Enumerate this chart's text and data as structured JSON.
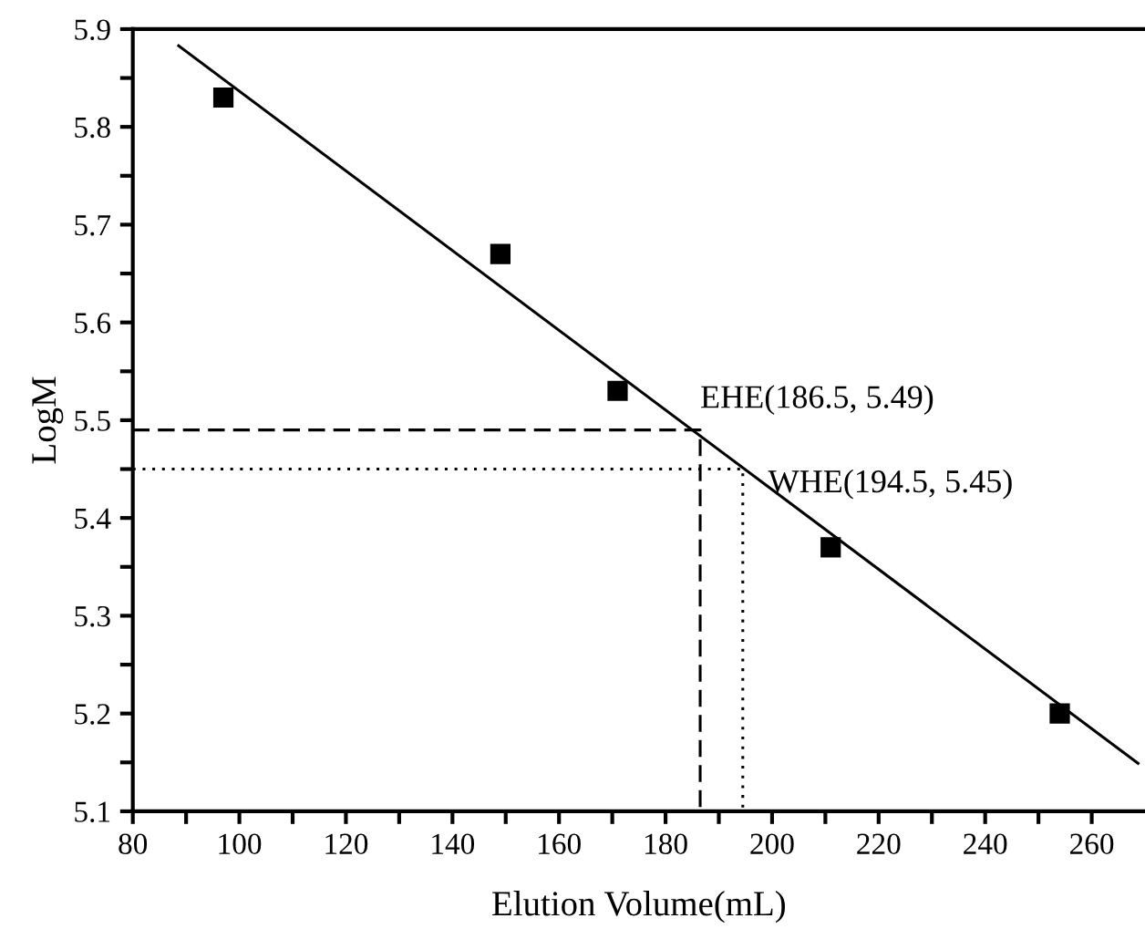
{
  "chart_data": {
    "type": "scatter",
    "xlabel": "Elution Volume(mL)",
    "ylabel": "LogM",
    "xlim": [
      80,
      270
    ],
    "ylim": [
      5.1,
      5.9
    ],
    "xticks": [
      80,
      {
        "value": 90,
        "label": null
      },
      100,
      {
        "value": 110,
        "label": null
      },
      120,
      {
        "value": 130,
        "label": null
      },
      140,
      {
        "value": 150,
        "label": null
      },
      160,
      {
        "value": 170,
        "label": null
      },
      180,
      {
        "value": 190,
        "label": null
      },
      200,
      {
        "value": 210,
        "label": null
      },
      220,
      {
        "value": 230,
        "label": null
      },
      240,
      {
        "value": 250,
        "label": null
      },
      260
    ],
    "yticks": [
      5.1,
      {
        "value": 5.15,
        "label": null
      },
      5.2,
      {
        "value": 5.25,
        "label": null
      },
      5.3,
      {
        "value": 5.35,
        "label": null
      },
      5.4,
      {
        "value": 5.45,
        "label": null
      },
      5.5,
      {
        "value": 5.55,
        "label": null
      },
      5.6,
      {
        "value": 5.65,
        "label": null
      },
      5.7,
      {
        "value": 5.75,
        "label": null
      },
      5.8,
      {
        "value": 5.85,
        "label": null
      },
      5.9
    ],
    "grid": false,
    "legend": false,
    "series": [
      {
        "marker": "square",
        "color": "#000000",
        "x": [
          97,
          149,
          171,
          211,
          254
        ],
        "values": [
          5.83,
          5.67,
          5.53,
          5.37,
          5.2
        ]
      },
      {
        "type": "line",
        "marker": "none",
        "line_style": "solid",
        "color": "#000000",
        "x": [
          88.6,
          268.7
        ],
        "values": [
          5.883,
          5.149
        ]
      },
      {
        "type": "line",
        "marker": "none",
        "line_style": "dashed",
        "color": "#000000",
        "x": [
          80,
          186.5,
          186.5
        ],
        "values": [
          5.49,
          5.49,
          5.1
        ]
      },
      {
        "type": "line",
        "marker": "none",
        "line_style": "dotted",
        "color": "#000000",
        "x": [
          80,
          194.5,
          194.5
        ],
        "values": [
          5.45,
          5.45,
          5.1
        ]
      }
    ],
    "annotations": [
      {
        "text": "EHE(186.5, 5.49)",
        "x": 186.5,
        "y": 5.49
      },
      {
        "text": "WHE(194.5, 5.45)",
        "x": 194.5,
        "y": 5.45
      }
    ]
  }
}
